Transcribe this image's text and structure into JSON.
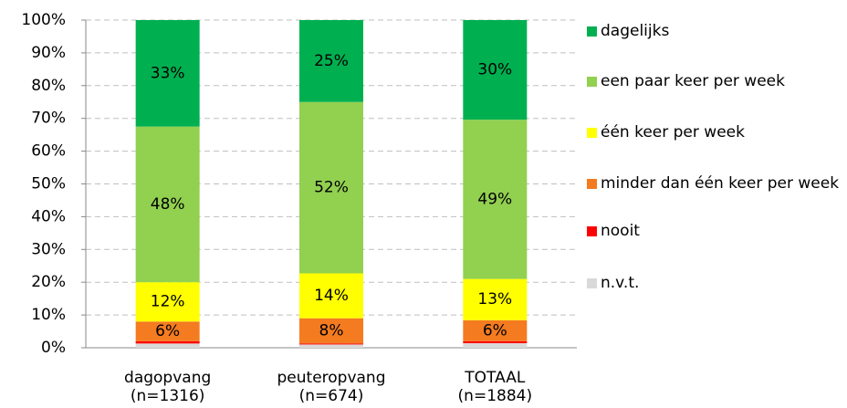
{
  "chart_data": {
    "type": "stacked_bar",
    "categories": [
      [
        "dagopvang",
        "(n=1316)"
      ],
      [
        "peuteropvang",
        "(n=674)"
      ],
      [
        "TOTAAL",
        "(n=1884)"
      ]
    ],
    "series": [
      {
        "name": "n.v.t.",
        "color": "#d9d9d9",
        "values": [
          1.3,
          1,
          1.4
        ]
      },
      {
        "name": "nooit",
        "color": "#ff0000",
        "values": [
          0.7,
          0.3,
          0.6
        ]
      },
      {
        "name": "minder dan één keer per week",
        "color": "#f47b20",
        "values": [
          6,
          7.7,
          6.4
        ],
        "value_labels": [
          "6%",
          "8%",
          "6%"
        ]
      },
      {
        "name": "één keer per week",
        "color": "#ffff00",
        "values": [
          12,
          13.7,
          12.6
        ],
        "value_labels": [
          "12%",
          "14%",
          "13%"
        ]
      },
      {
        "name": "een paar keer per week",
        "color": "#92d050",
        "values": [
          47.5,
          52.3,
          48.6
        ],
        "value_labels": [
          "48%",
          "52%",
          "49%"
        ]
      },
      {
        "name": "dagelijks",
        "color": "#00b050",
        "values": [
          32.5,
          25,
          30.4
        ],
        "value_labels": [
          "33%",
          "25%",
          "30%"
        ]
      }
    ],
    "ylim": [
      0,
      100
    ],
    "yticks": [
      {
        "value": 0,
        "label": "0%"
      },
      {
        "value": 10,
        "label": "10%"
      },
      {
        "value": 20,
        "label": "20%"
      },
      {
        "value": 30,
        "label": "30%"
      },
      {
        "value": 40,
        "label": "40%"
      },
      {
        "value": 50,
        "label": "50%"
      },
      {
        "value": 60,
        "label": "60%"
      },
      {
        "value": 70,
        "label": "70%"
      },
      {
        "value": 80,
        "label": "80%"
      },
      {
        "value": 90,
        "label": "90%"
      },
      {
        "value": 100,
        "label": "100%"
      }
    ],
    "grid": true,
    "legend": "right"
  }
}
